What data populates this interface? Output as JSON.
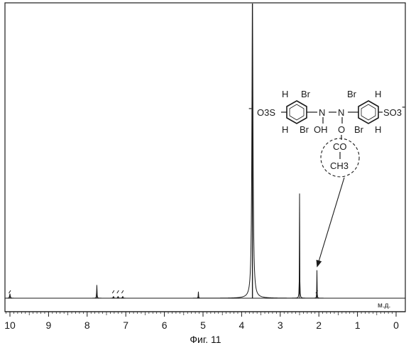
{
  "figure": {
    "caption": "Фиг. 11"
  },
  "chart_data": {
    "type": "line",
    "title": "",
    "xlabel": "",
    "x_unit": "м.д.",
    "ylabel": "",
    "x_reversed": true,
    "xlim": [
      10.25,
      0
    ],
    "ylim": [
      0,
      1
    ],
    "grid": false,
    "x_ticks": [
      "10",
      "9",
      "8",
      "7",
      "6",
      "5",
      "4",
      "3",
      "2",
      "1",
      "0"
    ],
    "x_minor_step": 0.1,
    "peaks": [
      {
        "ppm": 10.0,
        "height": 0.015,
        "width": 0.02
      },
      {
        "ppm": 7.75,
        "height": 0.045,
        "width": 0.012
      },
      {
        "ppm": 7.32,
        "height": 0.006,
        "width": 0.02
      },
      {
        "ppm": 7.2,
        "height": 0.006,
        "width": 0.02
      },
      {
        "ppm": 7.08,
        "height": 0.006,
        "width": 0.02
      },
      {
        "ppm": 5.12,
        "height": 0.022,
        "width": 0.01
      },
      {
        "ppm": 3.72,
        "height": 1.0,
        "width": 0.035
      },
      {
        "ppm": 2.5,
        "height": 0.355,
        "width": 0.008
      },
      {
        "ppm": 2.05,
        "height": 0.095,
        "width": 0.008
      }
    ],
    "integral_marks": [
      {
        "ppm": 10.0
      },
      {
        "ppm": 7.32
      },
      {
        "ppm": 7.2
      },
      {
        "ppm": 7.08
      },
      {
        "ppm": 2.05
      }
    ],
    "annotation": {
      "type": "structure",
      "points_to_ppm": 2.05,
      "labels": {
        "h_tl": "H",
        "br_tl": "Br",
        "br_tr": "Br",
        "h_tr": "H",
        "so3_left": "O3S",
        "so3_left_charge": "-",
        "n_left": "N",
        "n_right": "N",
        "so3_right": "SO3",
        "so3_right_charge": "-",
        "h_bl": "H",
        "br_bl": "Br",
        "oh": "OH",
        "o": "O",
        "br_br": "Br",
        "h_br": "H",
        "co": "CO",
        "ch3": "CH3"
      }
    }
  }
}
